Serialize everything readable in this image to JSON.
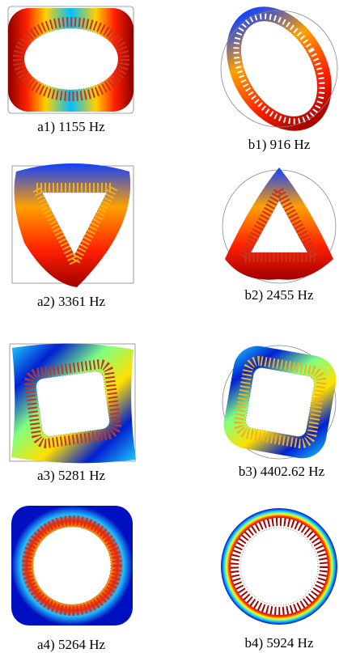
{
  "panels": [
    {
      "caption": "a1) 1155 Hz"
    },
    {
      "caption": "b1) 916 Hz"
    },
    {
      "caption": "a2) 3361 Hz"
    },
    {
      "caption": "b2) 2455 Hz"
    },
    {
      "caption": "a3) 5281 Hz"
    },
    {
      "caption": "b3) 4402.62 Hz"
    },
    {
      "caption": "a4) 5264 Hz"
    },
    {
      "caption": "b4) 5924 Hz"
    }
  ]
}
